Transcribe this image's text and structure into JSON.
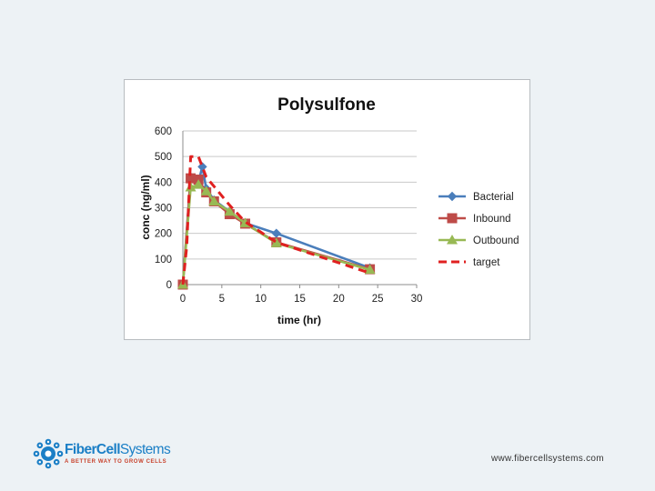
{
  "chart_data": {
    "type": "line",
    "title": "Polysulfone",
    "xlabel": "time (hr)",
    "ylabel": "conc (ng/ml)",
    "xlim": [
      0,
      30
    ],
    "ylim": [
      0,
      600
    ],
    "x_ticks": [
      "0",
      "5",
      "10",
      "15",
      "20",
      "25",
      "30"
    ],
    "y_ticks": [
      "0",
      "100",
      "200",
      "300",
      "400",
      "500",
      "600"
    ],
    "grid": "horizontal",
    "legend_position": "right",
    "series": [
      {
        "name": "Bacterial",
        "color": "#4a7ebb",
        "marker": "diamond",
        "line": "solid",
        "points": [
          [
            0,
            0
          ],
          [
            1,
            420
          ],
          [
            2,
            400
          ],
          [
            2.5,
            460
          ],
          [
            3,
            375
          ],
          [
            4,
            330
          ],
          [
            6,
            285
          ],
          [
            8,
            240
          ],
          [
            12,
            200
          ],
          [
            24,
            65
          ]
        ]
      },
      {
        "name": "Inbound",
        "color": "#be4b48",
        "marker": "square",
        "line": "solid",
        "points": [
          [
            0,
            0
          ],
          [
            1,
            415
          ],
          [
            2,
            410
          ],
          [
            3,
            360
          ],
          [
            4,
            325
          ],
          [
            6,
            275
          ],
          [
            8,
            238
          ],
          [
            12,
            165
          ],
          [
            24,
            60
          ]
        ]
      },
      {
        "name": "Outbound",
        "color": "#98b954",
        "marker": "triangle",
        "line": "solid",
        "points": [
          [
            0,
            0
          ],
          [
            1,
            380
          ],
          [
            2,
            390
          ],
          [
            3,
            365
          ],
          [
            4,
            325
          ],
          [
            6,
            285
          ],
          [
            8,
            240
          ],
          [
            12,
            162
          ],
          [
            24,
            58
          ]
        ]
      },
      {
        "name": "target",
        "color": "#e02020",
        "marker": "none",
        "line": "dashed",
        "points": [
          [
            0,
            0
          ],
          [
            0.5,
            150
          ],
          [
            1,
            500
          ],
          [
            2,
            500
          ],
          [
            3,
            420
          ],
          [
            6,
            310
          ],
          [
            8,
            245
          ],
          [
            12,
            165
          ],
          [
            24,
            45
          ]
        ]
      }
    ]
  },
  "logo": {
    "name_part1": "FiberCell",
    "name_part2": "Systems",
    "tagline": "A BETTER WAY TO GROW CELLS",
    "colors": {
      "blue": "#1b7fc6",
      "red": "#c8432d"
    }
  },
  "footer": {
    "url": "www.fibercellsystems.com"
  }
}
